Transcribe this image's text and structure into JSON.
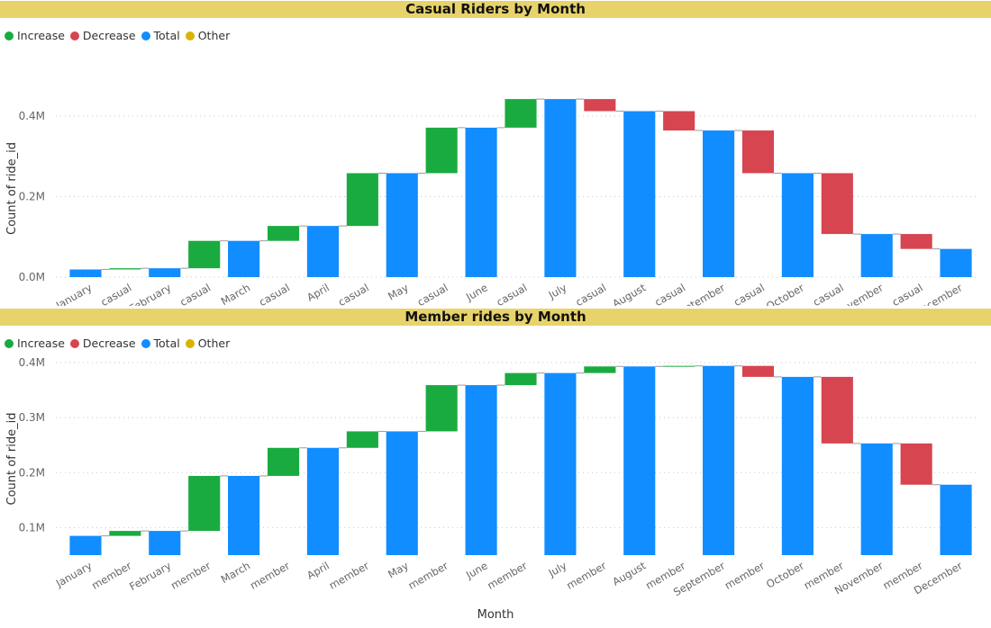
{
  "colors": {
    "increase": "#1aab40",
    "decrease": "#d64550",
    "total": "#118dff",
    "other": "#d9b300",
    "banner": "#e8d36a"
  },
  "legend": {
    "increase": "Increase",
    "decrease": "Decrease",
    "total": "Total",
    "other": "Other"
  },
  "xlabel": "Month",
  "chart_data": [
    {
      "type": "waterfall",
      "title": "Casual Riders by Month",
      "ylabel": "Count of ride_id",
      "xlabel": "",
      "ylim": [
        0,
        0.44
      ],
      "y_unit": "M",
      "y_ticks": [
        0.0,
        0.2,
        0.4
      ],
      "y_tick_labels": [
        "0.0M",
        "0.2M",
        "0.4M"
      ],
      "grid": true,
      "legend_position": "top-left",
      "categories": [
        "January",
        "casual",
        "February",
        "casual",
        "March",
        "casual",
        "April",
        "casual",
        "May",
        "casual",
        "June",
        "casual",
        "July",
        "casual",
        "August",
        "casual",
        "September",
        "casual",
        "October",
        "casual",
        "November",
        "casual",
        "December"
      ],
      "bars": [
        {
          "kind": "total",
          "start": 0,
          "end": 0.019
        },
        {
          "kind": "increase",
          "start": 0.019,
          "end": 0.022
        },
        {
          "kind": "total",
          "start": 0,
          "end": 0.022
        },
        {
          "kind": "increase",
          "start": 0.022,
          "end": 0.09
        },
        {
          "kind": "total",
          "start": 0,
          "end": 0.09
        },
        {
          "kind": "increase",
          "start": 0.09,
          "end": 0.127
        },
        {
          "kind": "total",
          "start": 0,
          "end": 0.127
        },
        {
          "kind": "increase",
          "start": 0.127,
          "end": 0.258
        },
        {
          "kind": "total",
          "start": 0,
          "end": 0.258
        },
        {
          "kind": "increase",
          "start": 0.258,
          "end": 0.371
        },
        {
          "kind": "total",
          "start": 0,
          "end": 0.371
        },
        {
          "kind": "increase",
          "start": 0.371,
          "end": 0.442
        },
        {
          "kind": "total",
          "start": 0,
          "end": 0.442
        },
        {
          "kind": "decrease",
          "start": 0.442,
          "end": 0.412
        },
        {
          "kind": "total",
          "start": 0,
          "end": 0.412
        },
        {
          "kind": "decrease",
          "start": 0.412,
          "end": 0.364
        },
        {
          "kind": "total",
          "start": 0,
          "end": 0.364
        },
        {
          "kind": "decrease",
          "start": 0.364,
          "end": 0.258
        },
        {
          "kind": "total",
          "start": 0,
          "end": 0.258
        },
        {
          "kind": "decrease",
          "start": 0.258,
          "end": 0.107
        },
        {
          "kind": "total",
          "start": 0,
          "end": 0.107
        },
        {
          "kind": "decrease",
          "start": 0.107,
          "end": 0.07
        },
        {
          "kind": "total",
          "start": 0,
          "end": 0.07
        }
      ]
    },
    {
      "type": "waterfall",
      "title": "Member rides by Month",
      "ylabel": "Count of ride_id",
      "xlabel": "Month",
      "ylim": [
        0.05,
        0.4
      ],
      "y_unit": "M",
      "y_ticks": [
        0.1,
        0.2,
        0.3,
        0.4
      ],
      "y_tick_labels": [
        "0.1M",
        "0.2M",
        "0.3M",
        "0.4M"
      ],
      "grid": true,
      "legend_position": "top-left",
      "categories": [
        "January",
        "member",
        "February",
        "member",
        "March",
        "member",
        "April",
        "member",
        "May",
        "member",
        "June",
        "member",
        "July",
        "member",
        "August",
        "member",
        "September",
        "member",
        "October",
        "member",
        "November",
        "member",
        "December"
      ],
      "bars": [
        {
          "kind": "total",
          "start": 0,
          "end": 0.085
        },
        {
          "kind": "increase",
          "start": 0.085,
          "end": 0.094
        },
        {
          "kind": "total",
          "start": 0,
          "end": 0.094
        },
        {
          "kind": "increase",
          "start": 0.094,
          "end": 0.194
        },
        {
          "kind": "total",
          "start": 0,
          "end": 0.194
        },
        {
          "kind": "increase",
          "start": 0.194,
          "end": 0.245
        },
        {
          "kind": "total",
          "start": 0,
          "end": 0.245
        },
        {
          "kind": "increase",
          "start": 0.245,
          "end": 0.275
        },
        {
          "kind": "total",
          "start": 0,
          "end": 0.275
        },
        {
          "kind": "increase",
          "start": 0.275,
          "end": 0.359
        },
        {
          "kind": "total",
          "start": 0,
          "end": 0.359
        },
        {
          "kind": "increase",
          "start": 0.359,
          "end": 0.381
        },
        {
          "kind": "total",
          "start": 0,
          "end": 0.381
        },
        {
          "kind": "increase",
          "start": 0.381,
          "end": 0.393
        },
        {
          "kind": "total",
          "start": 0,
          "end": 0.393
        },
        {
          "kind": "increase",
          "start": 0.393,
          "end": 0.394
        },
        {
          "kind": "total",
          "start": 0,
          "end": 0.394
        },
        {
          "kind": "decrease",
          "start": 0.394,
          "end": 0.374
        },
        {
          "kind": "total",
          "start": 0,
          "end": 0.374
        },
        {
          "kind": "decrease",
          "start": 0.374,
          "end": 0.253
        },
        {
          "kind": "total",
          "start": 0,
          "end": 0.253
        },
        {
          "kind": "decrease",
          "start": 0.253,
          "end": 0.178
        },
        {
          "kind": "total",
          "start": 0,
          "end": 0.178
        }
      ]
    }
  ]
}
